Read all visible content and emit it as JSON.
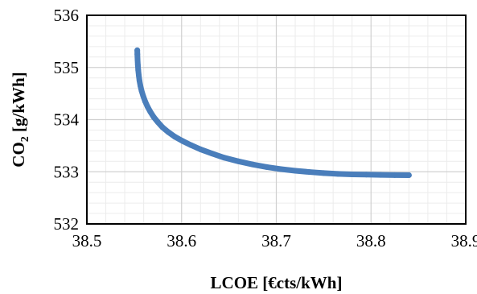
{
  "chart_data": {
    "type": "scatter",
    "title": "",
    "xlabel": "LCOE [€cts/kWh]",
    "ylabel_main": "CO",
    "ylabel_sub": "2",
    "ylabel_rest": " [g/kWh]",
    "xlim": [
      38.5,
      38.9
    ],
    "ylim": [
      532,
      536
    ],
    "x_ticks": [
      38.5,
      38.6,
      38.7,
      38.8,
      38.9
    ],
    "x_tick_labels": [
      "38.5",
      "38.6",
      "38.7",
      "38.8",
      "38.9"
    ],
    "y_ticks": [
      532,
      533,
      534,
      535,
      536
    ],
    "y_tick_labels": [
      "532",
      "533",
      "534",
      "535",
      "536"
    ],
    "grid": true,
    "minor_grid": true,
    "legend": "none",
    "series": [
      {
        "color": "#4a7ebb",
        "marker": "circle",
        "x": [
          38.5532,
          38.5533,
          38.5535,
          38.5538,
          38.5542,
          38.5548,
          38.5555,
          38.5565,
          38.5578,
          38.5595,
          38.5615,
          38.564,
          38.567,
          38.5705,
          38.575,
          38.58,
          38.586,
          38.593,
          38.601,
          38.61,
          38.62,
          38.632,
          38.645,
          38.66,
          38.675,
          38.69,
          38.705,
          38.72,
          38.735,
          38.75,
          38.765,
          38.78,
          38.795,
          38.81,
          38.825,
          38.84
        ],
        "y": [
          535.33,
          535.25,
          535.15,
          535.05,
          534.95,
          534.85,
          534.75,
          534.65,
          534.55,
          534.45,
          534.35,
          534.25,
          534.15,
          534.05,
          533.95,
          533.85,
          533.76,
          533.67,
          533.59,
          533.51,
          533.43,
          533.35,
          533.27,
          533.2,
          533.14,
          533.09,
          533.05,
          533.02,
          532.995,
          532.975,
          532.96,
          532.95,
          532.945,
          532.94,
          532.937,
          532.935
        ]
      }
    ]
  }
}
